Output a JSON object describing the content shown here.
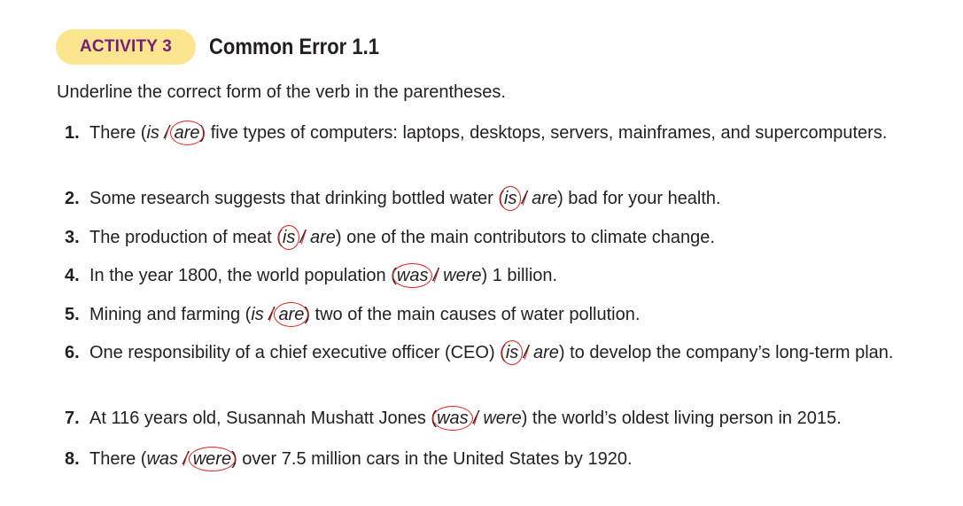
{
  "header": {
    "badge": "ACTIVITY 3",
    "title": "Common Error 1.1"
  },
  "instruction": "Underline the correct form of the verb in the parentheses.",
  "items": [
    {
      "number": "1.",
      "before": "There (",
      "opt1": "is",
      "sep": " / ",
      "opt2": "are",
      "after": ") five types of computers: laptops, desktops, servers, mainframes, and supercomputers.",
      "circled": "opt2"
    },
    {
      "number": "2.",
      "before": "Some research suggests that drinking bottled water (",
      "opt1": "is",
      "sep": " / ",
      "opt2": "are",
      "after": ") bad for your health.",
      "circled": "opt1"
    },
    {
      "number": "3.",
      "before": "The production of meat (",
      "opt1": "is",
      "sep": " / ",
      "opt2": "are",
      "after": ") one of the main contributors to climate change.",
      "circled": "opt1"
    },
    {
      "number": "4.",
      "before": "In the year 1800, the world population (",
      "opt1": "was",
      "sep": " / ",
      "opt2": "were",
      "after": ") 1 billion.",
      "circled": "opt1"
    },
    {
      "number": "5.",
      "before": "Mining and farming (",
      "opt1": "is",
      "sep": " / ",
      "opt2": "are",
      "after": ") two of the main causes of water pollution.",
      "circled": "opt2"
    },
    {
      "number": "6.",
      "before": "One responsibility of a chief executive officer (CEO) (",
      "opt1": "is",
      "sep": " / ",
      "opt2": "are",
      "after": ") to develop the company’s long-term plan.",
      "circled": "opt1"
    },
    {
      "number": "7.",
      "before": "At 116 years old, Susannah Mushatt Jones (",
      "opt1": "was",
      "sep": " / ",
      "opt2": "were",
      "after": ") the world’s oldest living person in 2015.",
      "circled": "opt1"
    },
    {
      "number": "8.",
      "before": "There (",
      "opt1": "was",
      "sep": " / ",
      "opt2": "were",
      "after": ") over 7.5 million cars in the United States by 1920.",
      "circled": "opt2"
    }
  ],
  "colors": {
    "badge_bg": "#fbe58f",
    "badge_text": "#7a1f78",
    "circle": "#e2211c"
  }
}
